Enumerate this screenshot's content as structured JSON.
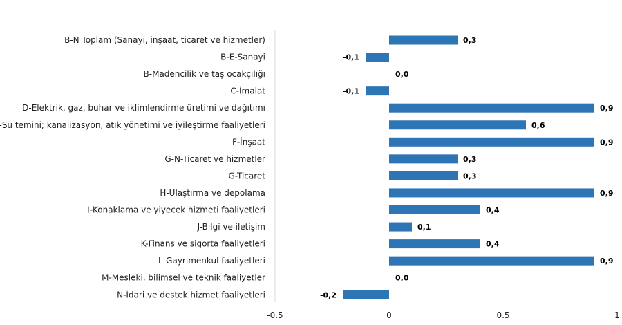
{
  "chart_data": {
    "type": "bar",
    "orientation": "horizontal",
    "categories": [
      "B-N Toplam (Sanayi, inşaat, ticaret ve hizmetler)",
      "B-E-Sanayi",
      "B-Madencilik ve taş ocakçılığı",
      "C-İmalat",
      "D-Elektrik, gaz, buhar ve iklimlendirme üretimi ve dağıtımı",
      "E-Su temini; kanalizasyon, atık yönetimi ve iyileştirme faaliyetleri",
      "F-İnşaat",
      "G-N-Ticaret ve hizmetler",
      "G-Ticaret",
      "H-Ulaştırma ve depolama",
      "I-Konaklama ve yiyecek hizmeti faaliyetleri",
      "J-Bilgi ve iletişim",
      "K-Finans ve sigorta faaliyetleri",
      "L-Gayrimenkul faaliyetleri",
      "M-Mesleki, bilimsel ve teknik faaliyetler",
      "N-İdari ve destek hizmet faaliyetleri"
    ],
    "values": [
      0.3,
      -0.1,
      0.0,
      -0.1,
      0.9,
      0.6,
      0.9,
      0.3,
      0.3,
      0.9,
      0.4,
      0.1,
      0.4,
      0.9,
      0.0,
      -0.2
    ],
    "value_labels": [
      "0,3",
      "-0,1",
      "0,0",
      "-0,1",
      "0,9",
      "0,6",
      "0,9",
      "0,3",
      "0,3",
      "0,9",
      "0,4",
      "0,1",
      "0,4",
      "0,9",
      "0,0",
      "-0,2"
    ],
    "xlim": [
      -0.5,
      1
    ],
    "xticks": [
      -0.5,
      0,
      0.5,
      1
    ],
    "xtick_labels": [
      "-0.5",
      "0",
      "0.5",
      "1"
    ],
    "title": "",
    "xlabel": "",
    "ylabel": "",
    "grid": false,
    "bar_color": "#2e75b6"
  }
}
